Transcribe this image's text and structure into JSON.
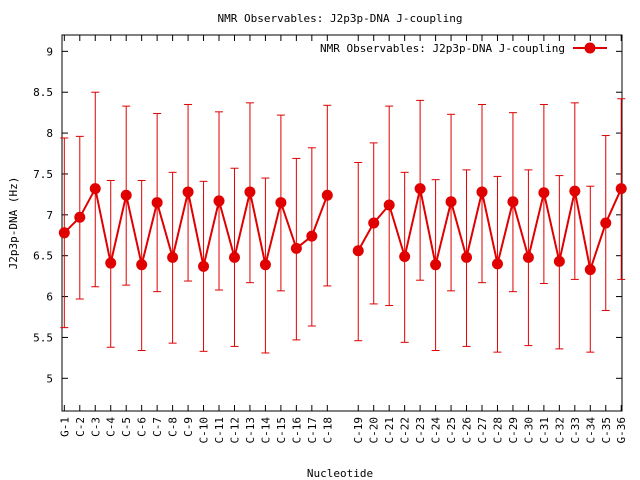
{
  "chart_data": {
    "type": "line",
    "title": "NMR Observables: J2p3p-DNA J-coupling",
    "xlabel": "Nucleotide",
    "ylabel": "J2p3p-DNA (Hz)",
    "ylim": [
      4.6,
      9.2
    ],
    "yticks": [
      5,
      5.5,
      6,
      6.5,
      7,
      7.5,
      8,
      8.5,
      9
    ],
    "ytick_labels": [
      "5",
      "5.5",
      "6",
      "6.5",
      "7",
      "7.5",
      "8",
      "8.5",
      "9"
    ],
    "grid": false,
    "legend_position": "top-right",
    "categories": [
      "G-1",
      "C-2",
      "C-3",
      "C-4",
      "C-5",
      "C-6",
      "C-7",
      "C-8",
      "C-9",
      "C-10",
      "C-11",
      "C-12",
      "C-13",
      "C-14",
      "C-15",
      "C-16",
      "C-17",
      "C-18",
      "C-19",
      "C-20",
      "C-21",
      "C-22",
      "C-23",
      "C-24",
      "C-25",
      "C-26",
      "C-27",
      "C-28",
      "C-29",
      "C-30",
      "C-31",
      "C-32",
      "C-33",
      "C-34",
      "C-35",
      "G-36"
    ],
    "series": [
      {
        "name": "NMR Observables: J2p3p-DNA J-coupling",
        "color": "#e00000",
        "segments": [
          [
            0,
            17
          ],
          [
            18,
            35
          ]
        ],
        "x": [
          1,
          2,
          3,
          4,
          5,
          6,
          7,
          8,
          9,
          10,
          11,
          12,
          13,
          14,
          15,
          16,
          17,
          18,
          20,
          21,
          22,
          23,
          24,
          25,
          26,
          27,
          28,
          29,
          30,
          31,
          32,
          33,
          34,
          35,
          36,
          37
        ],
        "values": [
          6.78,
          6.97,
          7.32,
          6.41,
          7.24,
          6.39,
          7.15,
          6.48,
          7.28,
          6.37,
          7.17,
          6.48,
          7.28,
          6.39,
          7.15,
          6.59,
          6.74,
          7.24,
          6.56,
          6.9,
          7.12,
          6.49,
          7.32,
          6.39,
          7.16,
          6.48,
          7.28,
          6.4,
          7.16,
          6.48,
          7.27,
          6.43,
          7.29,
          6.33,
          6.9,
          7.32
        ],
        "err_low": [
          5.62,
          5.97,
          6.12,
          5.38,
          6.14,
          5.34,
          6.06,
          5.43,
          6.19,
          5.33,
          6.08,
          5.39,
          6.17,
          5.31,
          6.07,
          5.47,
          5.64,
          6.13,
          5.46,
          5.91,
          5.89,
          5.44,
          6.2,
          5.34,
          6.07,
          5.39,
          6.17,
          5.32,
          6.06,
          5.4,
          6.16,
          5.36,
          6.21,
          5.32,
          5.83,
          6.21
        ],
        "err_high": [
          7.94,
          7.96,
          8.5,
          7.42,
          8.33,
          7.42,
          8.24,
          7.52,
          8.35,
          7.41,
          8.26,
          7.57,
          8.37,
          7.45,
          8.22,
          7.69,
          7.82,
          8.34,
          7.64,
          7.88,
          8.33,
          7.52,
          8.4,
          7.43,
          8.23,
          7.55,
          8.35,
          7.47,
          8.25,
          7.55,
          8.35,
          7.48,
          8.37,
          7.35,
          7.97,
          8.42
        ]
      }
    ]
  }
}
